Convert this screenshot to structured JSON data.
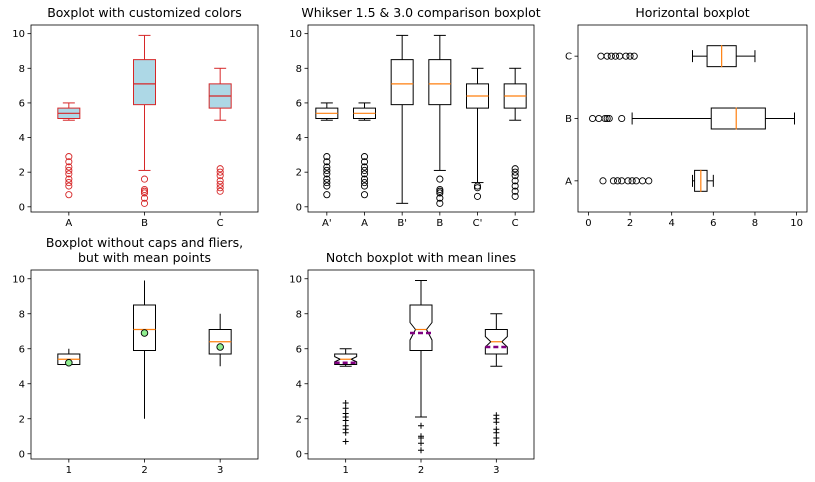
{
  "chart_data": [
    {
      "type": "boxplot",
      "title": "Boxplot with customized colors",
      "orientation": "vertical",
      "categories": [
        "A",
        "B",
        "C"
      ],
      "ylim": [
        -0.3,
        10.5
      ],
      "yticks": [
        0,
        2,
        4,
        6,
        8,
        10
      ],
      "colors": {
        "box_face": "#add8e6",
        "box_edge": "#d62728",
        "median": "#d62728",
        "whisker": "#d62728",
        "flier": "#d62728"
      },
      "boxes": [
        {
          "label": "A",
          "q1": 5.1,
          "median": 5.4,
          "q3": 5.7,
          "whislo": 5.0,
          "whishi": 6.0,
          "fliers": [
            0.7,
            1.2,
            1.4,
            1.6,
            1.9,
            2.1,
            2.3,
            2.6,
            2.9
          ]
        },
        {
          "label": "B",
          "q1": 5.9,
          "median": 7.1,
          "q3": 8.5,
          "whislo": 2.1,
          "whishi": 9.9,
          "fliers": [
            0.2,
            0.5,
            0.8,
            0.9,
            1.0,
            1.6
          ]
        },
        {
          "label": "C",
          "q1": 5.7,
          "median": 6.4,
          "q3": 7.1,
          "whislo": 5.0,
          "whishi": 8.0,
          "fliers": [
            0.9,
            1.1,
            1.3,
            1.5,
            1.8,
            2.0,
            2.2
          ]
        }
      ]
    },
    {
      "type": "boxplot",
      "title": "Whikser 1.5 & 3.0 comparison boxplot",
      "orientation": "vertical",
      "categories": [
        "A'",
        "A",
        "B'",
        "B",
        "C'",
        "C"
      ],
      "ylim": [
        -0.3,
        10.5
      ],
      "yticks": [
        0,
        2,
        4,
        6,
        8,
        10
      ],
      "colors": {
        "box_edge": "#000000",
        "median": "#ff7f0e",
        "flier": "#000000"
      },
      "boxes": [
        {
          "label": "A'",
          "q1": 5.1,
          "median": 5.4,
          "q3": 5.7,
          "whislo": 5.0,
          "whishi": 6.0,
          "fliers": [
            0.7,
            1.2,
            1.4,
            1.6,
            1.9,
            2.1,
            2.3,
            2.6,
            2.9
          ]
        },
        {
          "label": "A",
          "q1": 5.1,
          "median": 5.4,
          "q3": 5.7,
          "whislo": 5.0,
          "whishi": 6.0,
          "fliers": [
            0.7,
            1.2,
            1.4,
            1.6,
            1.9,
            2.1,
            2.3,
            2.6,
            2.9
          ]
        },
        {
          "label": "B'",
          "q1": 5.9,
          "median": 7.1,
          "q3": 8.5,
          "whislo": 0.2,
          "whishi": 9.9,
          "fliers": []
        },
        {
          "label": "B",
          "q1": 5.9,
          "median": 7.1,
          "q3": 8.5,
          "whislo": 2.1,
          "whishi": 9.9,
          "fliers": [
            0.2,
            0.5,
            0.8,
            0.9,
            1.0,
            1.6
          ]
        },
        {
          "label": "C'",
          "q1": 5.7,
          "median": 6.4,
          "q3": 7.1,
          "whislo": 1.4,
          "whishi": 8.0,
          "fliers": [
            0.6,
            1.1,
            1.2
          ]
        },
        {
          "label": "C",
          "q1": 5.7,
          "median": 6.4,
          "q3": 7.1,
          "whislo": 5.0,
          "whishi": 8.0,
          "fliers": [
            0.6,
            0.9,
            1.2,
            1.5,
            1.8,
            2.0,
            2.2
          ]
        }
      ]
    },
    {
      "type": "boxplot",
      "title": "Horizontal boxplot",
      "orientation": "horizontal",
      "categories": [
        "A",
        "B",
        "C"
      ],
      "xlim": [
        -0.5,
        10.5
      ],
      "xticks": [
        0,
        2,
        4,
        6,
        8,
        10
      ],
      "colors": {
        "box_edge": "#000000",
        "median": "#ff7f0e",
        "flier": "#000000"
      },
      "boxes": [
        {
          "label": "A",
          "q1": 5.1,
          "median": 5.4,
          "q3": 5.7,
          "whislo": 5.0,
          "whishi": 6.0,
          "fliers": [
            0.7,
            1.2,
            1.4,
            1.6,
            1.9,
            2.1,
            2.3,
            2.6,
            2.9
          ]
        },
        {
          "label": "B",
          "q1": 5.9,
          "median": 7.1,
          "q3": 8.5,
          "whislo": 2.1,
          "whishi": 9.9,
          "fliers": [
            0.2,
            0.5,
            0.8,
            0.9,
            1.0,
            1.6
          ]
        },
        {
          "label": "C",
          "q1": 5.7,
          "median": 6.4,
          "q3": 7.1,
          "whislo": 5.0,
          "whishi": 8.0,
          "fliers": [
            0.6,
            0.9,
            1.1,
            1.3,
            1.5,
            1.8,
            2.0,
            2.2
          ]
        }
      ]
    },
    {
      "type": "boxplot",
      "title": "Boxplot without caps and fliers,\nbut with mean points",
      "orientation": "vertical",
      "categories": [
        "1",
        "2",
        "3"
      ],
      "ylim": [
        -0.3,
        10.5
      ],
      "yticks": [
        0,
        2,
        4,
        6,
        8,
        10
      ],
      "caps": false,
      "fliers_shown": false,
      "colors": {
        "box_edge": "#000000",
        "median": "#ff7f0e",
        "mean_marker": "#90ee90"
      },
      "boxes": [
        {
          "label": "1",
          "q1": 5.1,
          "median": 5.4,
          "q3": 5.7,
          "whislo": 5.0,
          "whishi": 6.0,
          "mean": 5.2
        },
        {
          "label": "2",
          "q1": 5.9,
          "median": 7.1,
          "q3": 8.5,
          "whislo": 2.0,
          "whishi": 9.9,
          "mean": 6.9
        },
        {
          "label": "3",
          "q1": 5.7,
          "median": 6.4,
          "q3": 7.1,
          "whislo": 5.0,
          "whishi": 8.0,
          "mean": 6.1
        }
      ]
    },
    {
      "type": "boxplot",
      "title": "Notch boxplot with mean lines",
      "orientation": "vertical",
      "categories": [
        "1",
        "2",
        "3"
      ],
      "ylim": [
        -0.3,
        10.5
      ],
      "yticks": [
        0,
        2,
        4,
        6,
        8,
        10
      ],
      "notch": true,
      "flier_marker": "+",
      "colors": {
        "box_edge": "#000000",
        "median": "#ff7f0e",
        "mean_line": "#800080",
        "flier": "#000000"
      },
      "boxes": [
        {
          "label": "1",
          "q1": 5.1,
          "median": 5.4,
          "q3": 5.7,
          "whislo": 5.0,
          "whishi": 6.0,
          "mean": 5.2,
          "notchlo": 5.25,
          "notchhi": 5.55,
          "fliers": [
            0.7,
            1.2,
            1.4,
            1.6,
            1.9,
            2.1,
            2.3,
            2.6,
            2.9
          ]
        },
        {
          "label": "2",
          "q1": 5.9,
          "median": 7.1,
          "q3": 8.5,
          "whislo": 2.1,
          "whishi": 9.9,
          "mean": 6.9,
          "notchlo": 6.5,
          "notchhi": 7.5,
          "fliers": [
            0.2,
            0.6,
            0.9,
            1.0,
            1.6
          ]
        },
        {
          "label": "3",
          "q1": 5.7,
          "median": 6.4,
          "q3": 7.1,
          "whislo": 5.0,
          "whishi": 8.0,
          "mean": 6.1,
          "notchlo": 6.1,
          "notchhi": 6.7,
          "fliers": [
            0.6,
            0.9,
            1.2,
            1.4,
            1.8,
            2.0,
            2.2
          ]
        }
      ]
    }
  ]
}
